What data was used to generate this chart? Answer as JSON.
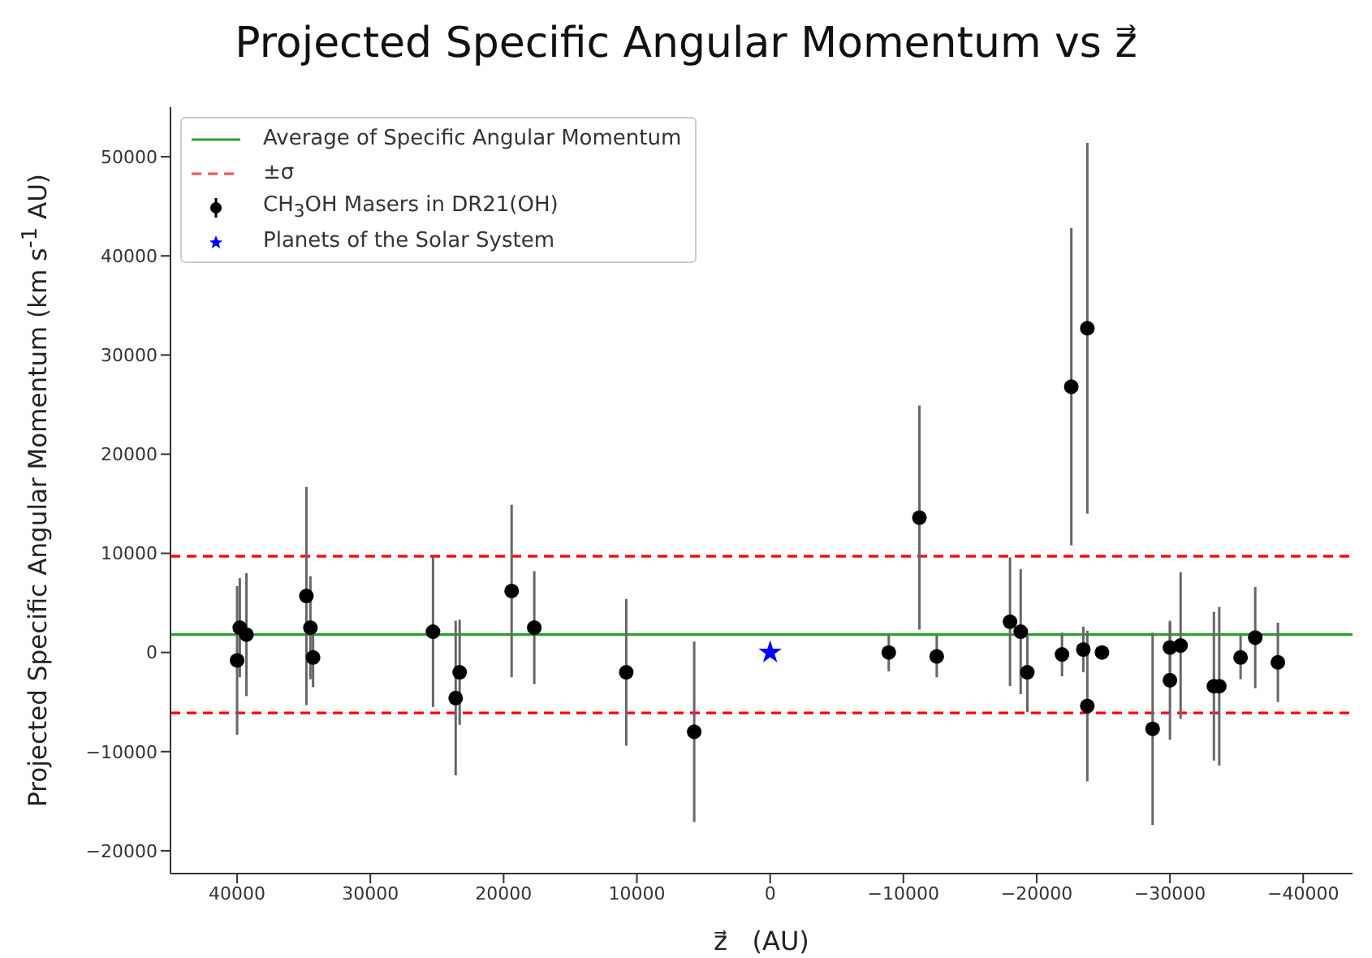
{
  "chart_data": {
    "type": "scatter",
    "title": "Projected Specific Angular Momentum vs z⃗",
    "xlabel": "z⃗   (AU)",
    "ylabel": "Projected Specific Angular Momentum (km s$^{-1}$ AU)",
    "xlim": [
      45000,
      -43700
    ],
    "ylim": [
      -22300,
      55000
    ],
    "xticks": [
      40000,
      30000,
      20000,
      10000,
      0,
      {
        "value": -10000,
        "label": "−10000"
      },
      {
        "value": -20000,
        "label": "−20000"
      },
      {
        "value": -30000,
        "label": "−30000"
      },
      {
        "value": -40000,
        "label": "−40000"
      }
    ],
    "yticks": [
      {
        "value": -20000,
        "label": "−20000"
      },
      {
        "value": -10000,
        "label": "−10000"
      },
      0,
      10000,
      20000,
      30000,
      40000,
      50000
    ],
    "legend": "top left",
    "ref_lines": [
      {
        "axis": "y",
        "value": 1800,
        "label": "Average of Specific Angular Momentum",
        "color": "#2ca02c",
        "line_style": "solid"
      },
      {
        "axis": "y",
        "value": 9700,
        "label": "±σ",
        "color": "#ff0000",
        "line_style": "dashed"
      },
      {
        "axis": "y",
        "value": -6100,
        "label": null,
        "color": "#ff0000",
        "line_style": "dashed"
      }
    ],
    "series": [
      {
        "name": "CH$_{3}$OH Masers in DR21(OH)",
        "color": "#000000",
        "marker": "circle",
        "x": [
          40000,
          39800,
          39300,
          34800,
          34500,
          34300,
          25300,
          23300,
          23600,
          19400,
          17700,
          10800,
          5700,
          -8900,
          -12500,
          -11200,
          -18000,
          -18800,
          -19300,
          -21900,
          -23500,
          -23800,
          -24900,
          -28700,
          -30000,
          -30000,
          -30800,
          -33300,
          -33700,
          -35300,
          -36400,
          -38100,
          -22600,
          -23800
        ],
        "values": [
          -800,
          2500,
          1800,
          5700,
          2500,
          -500,
          2100,
          -2000,
          -4600,
          6200,
          2500,
          -2000,
          -8000,
          0,
          -400,
          13600,
          3100,
          2100,
          -2000,
          -200,
          300,
          -5400,
          0,
          -7700,
          500,
          -2800,
          700,
          -3400,
          -3400,
          -500,
          1500,
          -1000,
          26800,
          32700
        ],
        "errors": [
          7500,
          5000,
          6200,
          11000,
          5200,
          3000,
          7600,
          5300,
          7800,
          8700,
          5700,
          7400,
          9100,
          1900,
          2100,
          11300,
          6500,
          6300,
          4000,
          2200,
          2300,
          7600,
          500,
          9700,
          2500,
          6000,
          7400,
          7500,
          8000,
          2200,
          5100,
          4000,
          16000,
          18700
        ]
      },
      {
        "name": "Planets of the Solar System",
        "color": "#0000ff",
        "marker": "star",
        "x": [
          0
        ],
        "values": [
          0
        ]
      }
    ]
  }
}
